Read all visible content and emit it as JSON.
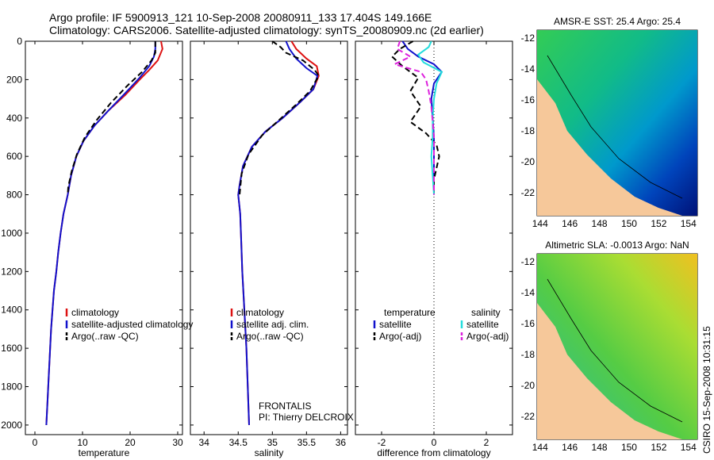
{
  "header": {
    "line1": "Argo profile: IF 5900913_121 10-Sep-2008 20080911_133 17.404S 149.166E",
    "line2": "Climatology: CARS2006. Satellite-adjusted climatology: synTS_20080909.nc (2d earlier)"
  },
  "footer_note": {
    "program": "FRONTALIS",
    "pi": "PI: Thierry DELCROIX"
  },
  "credit": "CSIRO 15-Sep-2008 10:31:15",
  "colors": {
    "climatology": "#dd1111",
    "satellite": "#1111cc",
    "argo": "#000000",
    "sal_satellite": "#22dddd",
    "sal_argo": "#dd22dd",
    "land": "#f6c89a"
  },
  "chart_data": [
    {
      "id": "temperature",
      "type": "line",
      "xlabel": "temperature",
      "ylabel": "",
      "xlim": [
        -2,
        31
      ],
      "ylim": [
        2050,
        0
      ],
      "xticks": [
        0,
        10,
        20,
        30
      ],
      "yticks": [
        0,
        200,
        400,
        600,
        800,
        1000,
        1200,
        1400,
        1600,
        1800,
        2000
      ],
      "legend": [
        "climatology",
        "satellite-adjusted climatology",
        "Argo(..raw -QC)"
      ],
      "series": [
        {
          "name": "climatology",
          "style": "solid",
          "color": "#dd1111",
          "points": [
            [
              26.5,
              0
            ],
            [
              26.8,
              40
            ],
            [
              25.8,
              100
            ],
            [
              24.0,
              150
            ],
            [
              22.0,
              200
            ],
            [
              19.0,
              280
            ],
            [
              15.5,
              360
            ],
            [
              12.5,
              440
            ],
            [
              10.2,
              520
            ],
            [
              8.7,
              600
            ],
            [
              7.6,
              700
            ],
            [
              6.9,
              800
            ],
            [
              6.0,
              900
            ],
            [
              5.4,
              1000
            ],
            [
              4.9,
              1100
            ],
            [
              4.5,
              1200
            ],
            [
              4.0,
              1300
            ],
            [
              3.7,
              1400
            ],
            [
              3.4,
              1500
            ],
            [
              3.2,
              1600
            ],
            [
              3.0,
              1700
            ],
            [
              2.8,
              1800
            ],
            [
              2.6,
              1900
            ],
            [
              2.4,
              2000
            ]
          ]
        },
        {
          "name": "satellite-adjusted climatology",
          "style": "solid",
          "color": "#1111cc",
          "points": [
            [
              25.3,
              0
            ],
            [
              25.3,
              40
            ],
            [
              25.0,
              80
            ],
            [
              24.0,
              130
            ],
            [
              22.0,
              190
            ],
            [
              19.0,
              270
            ],
            [
              15.5,
              360
            ],
            [
              12.5,
              440
            ],
            [
              10.2,
              520
            ],
            [
              8.7,
              600
            ],
            [
              7.6,
              700
            ],
            [
              6.9,
              800
            ],
            [
              6.0,
              900
            ],
            [
              5.4,
              1000
            ],
            [
              4.9,
              1100
            ],
            [
              4.5,
              1200
            ],
            [
              4.0,
              1300
            ],
            [
              3.7,
              1400
            ],
            [
              3.4,
              1500
            ],
            [
              3.2,
              1600
            ],
            [
              3.0,
              1700
            ],
            [
              2.8,
              1800
            ],
            [
              2.6,
              1900
            ],
            [
              2.4,
              2000
            ]
          ]
        },
        {
          "name": "Argo(..raw -QC)",
          "style": "dashed",
          "color": "#000000",
          "points": [
            [
              25.3,
              0
            ],
            [
              25.3,
              60
            ],
            [
              24.5,
              100
            ],
            [
              22.5,
              160
            ],
            [
              19.5,
              230
            ],
            [
              16.0,
              320
            ],
            [
              13.0,
              410
            ],
            [
              10.5,
              500
            ],
            [
              8.8,
              590
            ],
            [
              7.7,
              680
            ],
            [
              7.0,
              760
            ],
            [
              6.9,
              800
            ]
          ]
        }
      ]
    },
    {
      "id": "salinity",
      "type": "line",
      "xlabel": "salinity",
      "ylabel": "",
      "xlim": [
        33.8,
        36.1
      ],
      "ylim": [
        2050,
        0
      ],
      "xticks": [
        34,
        34.5,
        35,
        35.5,
        36
      ],
      "legend": [
        "climatology",
        "satellite adj. clim.",
        "Argo(..raw -QC)"
      ],
      "series": [
        {
          "name": "climatology",
          "style": "solid",
          "color": "#dd1111",
          "points": [
            [
              35.28,
              0
            ],
            [
              35.35,
              40
            ],
            [
              35.5,
              90
            ],
            [
              35.65,
              130
            ],
            [
              35.68,
              180
            ],
            [
              35.6,
              250
            ],
            [
              35.4,
              320
            ],
            [
              35.15,
              400
            ],
            [
              34.9,
              470
            ],
            [
              34.7,
              550
            ],
            [
              34.57,
              650
            ],
            [
              34.52,
              750
            ],
            [
              34.5,
              800
            ],
            [
              34.53,
              900
            ],
            [
              34.54,
              1000
            ],
            [
              34.56,
              1200
            ],
            [
              34.59,
              1400
            ],
            [
              34.62,
              1600
            ],
            [
              34.64,
              1800
            ],
            [
              34.66,
              2000
            ]
          ]
        },
        {
          "name": "satellite adj. clim.",
          "style": "solid",
          "color": "#1111cc",
          "points": [
            [
              35.2,
              0
            ],
            [
              35.25,
              40
            ],
            [
              35.35,
              90
            ],
            [
              35.5,
              140
            ],
            [
              35.66,
              180
            ],
            [
              35.6,
              250
            ],
            [
              35.4,
              320
            ],
            [
              35.15,
              400
            ],
            [
              34.9,
              470
            ],
            [
              34.7,
              550
            ],
            [
              34.57,
              650
            ],
            [
              34.52,
              750
            ],
            [
              34.5,
              800
            ],
            [
              34.53,
              900
            ],
            [
              34.54,
              1000
            ],
            [
              34.56,
              1200
            ],
            [
              34.59,
              1400
            ],
            [
              34.62,
              1600
            ],
            [
              34.64,
              1800
            ],
            [
              34.66,
              2000
            ]
          ]
        },
        {
          "name": "Argo(..raw -QC)",
          "style": "dashed",
          "color": "#000000",
          "points": [
            [
              35.0,
              0
            ],
            [
              35.12,
              30
            ],
            [
              35.2,
              60
            ],
            [
              35.45,
              100
            ],
            [
              35.62,
              150
            ],
            [
              35.68,
              180
            ],
            [
              35.55,
              260
            ],
            [
              35.35,
              330
            ],
            [
              35.1,
              410
            ],
            [
              34.85,
              490
            ],
            [
              34.65,
              590
            ],
            [
              34.55,
              690
            ],
            [
              34.52,
              800
            ]
          ]
        }
      ]
    },
    {
      "id": "difference",
      "type": "line",
      "xlabel": "difference from climatology",
      "ylabel": "",
      "xlim": [
        -3,
        3
      ],
      "ylim": [
        2050,
        0
      ],
      "xticks": [
        -2,
        0,
        2
      ],
      "legend": [
        "temperature",
        "satellite",
        "Argo(-adj)",
        "salinity",
        "satellite",
        "Argo(-adj)"
      ],
      "series": [
        {
          "name": "temperature satellite",
          "style": "solid",
          "color": "#1111cc",
          "points": [
            [
              -1.2,
              0
            ],
            [
              -1.0,
              40
            ],
            [
              -0.6,
              80
            ],
            [
              0.0,
              120
            ],
            [
              0.3,
              160
            ],
            [
              0.0,
              220
            ],
            [
              -0.1,
              300
            ],
            [
              -0.05,
              400
            ],
            [
              0.0,
              500
            ],
            [
              0.0,
              600
            ],
            [
              0.0,
              700
            ],
            [
              0.0,
              800
            ]
          ]
        },
        {
          "name": "temperature Argo(-adj)",
          "style": "dashed",
          "color": "#000000",
          "points": [
            [
              -0.8,
              0
            ],
            [
              -1.3,
              40
            ],
            [
              -1.6,
              80
            ],
            [
              -1.2,
              130
            ],
            [
              -0.6,
              190
            ],
            [
              -0.9,
              260
            ],
            [
              -0.5,
              340
            ],
            [
              -0.9,
              420
            ],
            [
              -0.3,
              480
            ],
            [
              0.1,
              540
            ],
            [
              0.2,
              600
            ],
            [
              0.1,
              660
            ],
            [
              0.0,
              720
            ],
            [
              0.0,
              800
            ]
          ]
        },
        {
          "name": "salinity satellite",
          "style": "solid",
          "color": "#22dddd",
          "points": [
            [
              -0.1,
              0
            ],
            [
              -0.2,
              30
            ],
            [
              -0.6,
              70
            ],
            [
              -0.4,
              110
            ],
            [
              0.3,
              160
            ],
            [
              0.1,
              220
            ],
            [
              0.0,
              300
            ],
            [
              -0.05,
              400
            ],
            [
              -0.05,
              500
            ],
            [
              -0.1,
              600
            ],
            [
              -0.05,
              700
            ],
            [
              0.0,
              800
            ]
          ]
        },
        {
          "name": "salinity Argo(-adj)",
          "style": "dashed",
          "color": "#dd22dd",
          "points": [
            [
              -1.3,
              0
            ],
            [
              -1.4,
              40
            ],
            [
              -0.9,
              80
            ],
            [
              -1.5,
              120
            ],
            [
              -0.5,
              160
            ],
            [
              -0.3,
              200
            ],
            [
              -0.2,
              260
            ],
            [
              -0.1,
              340
            ],
            [
              -0.05,
              420
            ],
            [
              0.0,
              500
            ],
            [
              0.0,
              600
            ],
            [
              0.0,
              700
            ],
            [
              0.0,
              800
            ]
          ]
        }
      ]
    },
    {
      "id": "sst-map",
      "type": "heatmap",
      "title": "AMSR-E SST: 25.4 Argo: 25.4",
      "xlim": [
        143.8,
        154.6
      ],
      "ylim": [
        -23.5,
        -11.5
      ],
      "xticks": [
        144,
        146,
        148,
        150,
        152,
        154
      ],
      "yticks": [
        -12,
        -14,
        -16,
        -18,
        -20,
        -22
      ],
      "argo_position": [
        149.166,
        -17.404
      ]
    },
    {
      "id": "sla-map",
      "type": "heatmap",
      "title": "Altimetric SLA: -0.0013 Argo: NaN",
      "xlim": [
        143.8,
        154.6
      ],
      "ylim": [
        -23.5,
        -11.5
      ],
      "xticks": [
        144,
        146,
        148,
        150,
        152,
        154
      ],
      "yticks": [
        -12,
        -14,
        -16,
        -18,
        -20,
        -22
      ],
      "argo_position": [
        149.166,
        -17.404
      ]
    }
  ]
}
